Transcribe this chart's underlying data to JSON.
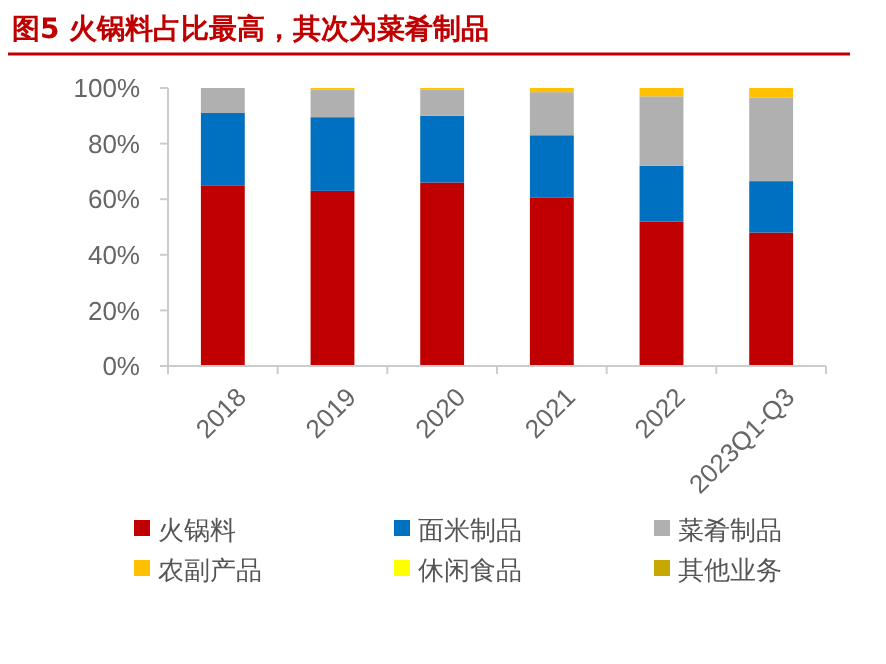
{
  "chart_data": {
    "type": "bar",
    "title": "图5  火锅料占比最高，其次为菜肴制品",
    "stacked": true,
    "categories": [
      "2018",
      "2019",
      "2020",
      "2021",
      "2022",
      "2023Q1-Q3"
    ],
    "series": [
      {
        "name": "火锅料",
        "color": "#c00000",
        "values": [
          65,
          63,
          66,
          60.5,
          52,
          48
        ]
      },
      {
        "name": "面米制品",
        "color": "#0070c0",
        "values": [
          26,
          26.5,
          24,
          22.5,
          20,
          18.5
        ]
      },
      {
        "name": "菜肴制品",
        "color": "#b0b0b0",
        "values": [
          9,
          10,
          9.5,
          15.5,
          25,
          30
        ]
      },
      {
        "name": "农副产品",
        "color": "#ffc000",
        "values": [
          0,
          0.5,
          0.5,
          1.5,
          3,
          3.5
        ]
      },
      {
        "name": "休闲食品",
        "color": "#ffff00",
        "values": [
          0,
          0,
          0,
          0,
          0,
          0
        ]
      },
      {
        "name": "其他业务",
        "color": "#c8a800",
        "values": [
          0,
          0,
          0,
          0,
          0,
          0
        ]
      }
    ],
    "ylim": [
      0,
      100
    ],
    "yticks": [
      {
        "value": 0,
        "label": "0%"
      },
      {
        "value": 20,
        "label": "20%"
      },
      {
        "value": 40,
        "label": "40%"
      },
      {
        "value": 60,
        "label": "60%"
      },
      {
        "value": 80,
        "label": "80%"
      },
      {
        "value": 100,
        "label": "100%"
      }
    ],
    "legend": "bottom",
    "grid": false
  }
}
